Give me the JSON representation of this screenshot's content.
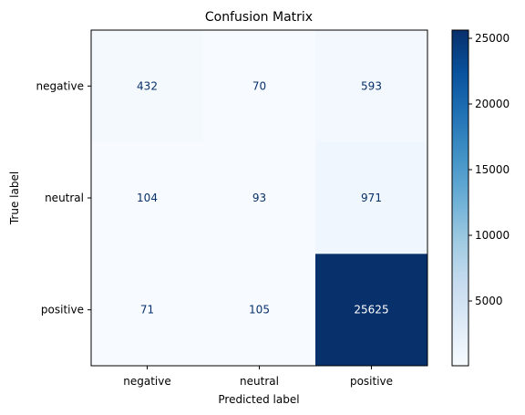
{
  "chart_data": {
    "type": "heatmap",
    "title": "Confusion Matrix",
    "xlabel": "Predicted label",
    "ylabel": "True label",
    "x_categories": [
      "negative",
      "neutral",
      "positive"
    ],
    "y_categories": [
      "negative",
      "neutral",
      "positive"
    ],
    "values": [
      [
        432,
        70,
        593
      ],
      [
        104,
        93,
        971
      ],
      [
        71,
        105,
        25625
      ]
    ],
    "colormap": "Blues",
    "color_range": [
      70,
      25625
    ],
    "colorbar_ticks": [
      5000,
      10000,
      15000,
      20000,
      25000
    ],
    "text_color_light": "#ffffff",
    "text_color_dark": "#08306b",
    "grid": false
  }
}
